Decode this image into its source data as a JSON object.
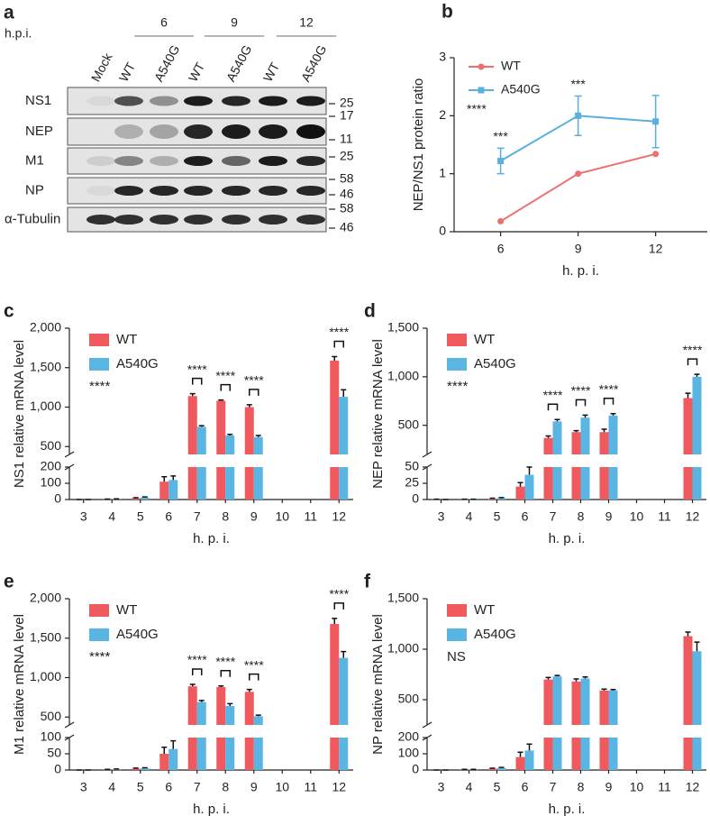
{
  "blot": {
    "panel_label": "a",
    "hpi_label": "h.p.i.",
    "timepoints": [
      "6",
      "9",
      "12"
    ],
    "lanes": [
      "Mock",
      "WT",
      "A540G",
      "WT",
      "A540G",
      "WT",
      "A540G"
    ],
    "rows": [
      {
        "name": "NS1",
        "markers": [
          25
        ]
      },
      {
        "name": "NEP",
        "markers": [
          17,
          11
        ]
      },
      {
        "name": "M1",
        "markers": [
          25
        ]
      },
      {
        "name": "NP",
        "markers": [
          58,
          46
        ]
      },
      {
        "name": "α-Tubulin",
        "markers": [
          58,
          46
        ]
      }
    ]
  },
  "chart_data": [
    {
      "type": "line",
      "panel_label": "b",
      "x_label": "h. p. i.",
      "y_label": "NEP/NS1 protein ratio",
      "x": [
        6,
        9,
        12
      ],
      "xlim": [
        4.2,
        14
      ],
      "xticks": [
        6,
        9,
        12
      ],
      "ylim": [
        0,
        3
      ],
      "yticks": [
        0,
        1,
        2,
        3
      ],
      "series": [
        {
          "name": "WT",
          "color": "#ee6e6e",
          "marker": "circle",
          "values": [
            0.18,
            1.0,
            1.34
          ]
        },
        {
          "name": "A540G",
          "color": "#5aafdf",
          "marker": "square",
          "values": [
            1.22,
            2.0,
            1.9
          ],
          "errors": [
            0.22,
            0.34,
            0.45
          ]
        }
      ],
      "annotations": [
        {
          "text": "***",
          "x": 6
        },
        {
          "text": "***",
          "x": 9
        }
      ],
      "note": "****",
      "legend": "upper left"
    },
    {
      "type": "bar",
      "panel_label": "c",
      "x_label": "h. p. i.",
      "y_label": "NS1 relative mRNA level",
      "categories": [
        "3",
        "4",
        "5",
        "6",
        "7",
        "8",
        "9",
        "10",
        "11",
        "12"
      ],
      "ylim": [
        0,
        2000
      ],
      "ybreak": [
        200,
        400
      ],
      "yticks": [
        0,
        100,
        200,
        500,
        {
          "value": 1000,
          "label": "1,000"
        },
        {
          "value": 1500,
          "label": "1,500"
        },
        {
          "value": 2000,
          "label": "2,000"
        }
      ],
      "series": [
        {
          "name": "WT",
          "color": "#f0595e",
          "values": [
            0,
            2,
            8,
            110,
            1140,
            1080,
            1000,
            null,
            null,
            1590
          ],
          "errors": [
            0,
            1,
            3,
            30,
            30,
            10,
            30,
            null,
            null,
            50
          ]
        },
        {
          "name": "A540G",
          "color": "#5bb5e2",
          "values": [
            0,
            3,
            12,
            120,
            750,
            640,
            620,
            null,
            null,
            1130
          ],
          "errors": [
            0,
            1,
            4,
            25,
            15,
            15,
            20,
            null,
            null,
            90
          ]
        }
      ],
      "brackets": [
        {
          "category": "7",
          "text": "****"
        },
        {
          "category": "8",
          "text": "****"
        },
        {
          "category": "9",
          "text": "****"
        },
        {
          "category": "12",
          "text": "****"
        }
      ],
      "note": "****",
      "legend": "upper left"
    },
    {
      "type": "bar",
      "panel_label": "d",
      "x_label": "h. p. i.",
      "y_label": "NEP relative mRNA level",
      "categories": [
        "3",
        "4",
        "5",
        "6",
        "7",
        "8",
        "9",
        "10",
        "11",
        "12"
      ],
      "ylim": [
        0,
        1500
      ],
      "ybreak": [
        50,
        200
      ],
      "yticks": [
        0,
        25,
        50,
        500,
        {
          "value": 1000,
          "label": "1,000"
        },
        {
          "value": 1500,
          "label": "1,500"
        }
      ],
      "series": [
        {
          "name": "WT",
          "color": "#f0595e",
          "values": [
            0.5,
            0.5,
            1,
            20,
            370,
            430,
            430,
            null,
            null,
            780
          ],
          "errors": [
            0,
            0,
            1,
            6,
            20,
            15,
            30,
            null,
            null,
            50
          ]
        },
        {
          "name": "A540G",
          "color": "#5bb5e2",
          "values": [
            0,
            0.5,
            2,
            38,
            540,
            580,
            600,
            null,
            null,
            1000
          ],
          "errors": [
            0,
            0,
            1,
            12,
            20,
            25,
            20,
            null,
            null,
            25
          ]
        }
      ],
      "brackets": [
        {
          "category": "7",
          "text": "****"
        },
        {
          "category": "8",
          "text": "****"
        },
        {
          "category": "9",
          "text": "****"
        },
        {
          "category": "12",
          "text": "****"
        }
      ],
      "note": "****",
      "legend": "upper left"
    },
    {
      "type": "bar",
      "panel_label": "e",
      "x_label": "h. p. i.",
      "y_label": "M1 relative mRNA level",
      "categories": [
        "3",
        "4",
        "5",
        "6",
        "7",
        "8",
        "9",
        "10",
        "11",
        "12"
      ],
      "ylim": [
        0,
        2000
      ],
      "ybreak": [
        100,
        400
      ],
      "yticks": [
        0,
        50,
        100,
        500,
        {
          "value": 1000,
          "label": "1,000"
        },
        {
          "value": 1500,
          "label": "1,500"
        },
        {
          "value": 2000,
          "label": "2,000"
        }
      ],
      "series": [
        {
          "name": "WT",
          "color": "#f0595e",
          "values": [
            0,
            1,
            4,
            50,
            890,
            880,
            820,
            null,
            null,
            1680
          ],
          "errors": [
            0,
            1,
            2,
            20,
            25,
            15,
            30,
            null,
            null,
            70
          ]
        },
        {
          "name": "A540G",
          "color": "#5bb5e2",
          "values": [
            0,
            2,
            5,
            65,
            690,
            640,
            510,
            null,
            null,
            1250
          ],
          "errors": [
            0,
            1,
            2,
            25,
            20,
            30,
            15,
            null,
            null,
            80
          ]
        }
      ],
      "brackets": [
        {
          "category": "7",
          "text": "****"
        },
        {
          "category": "8",
          "text": "****"
        },
        {
          "category": "9",
          "text": "****"
        },
        {
          "category": "12",
          "text": "****"
        }
      ],
      "note": "****",
      "legend": "upper left"
    },
    {
      "type": "bar",
      "panel_label": "f",
      "x_label": "h. p. i.",
      "y_label": "NP relative mRNA level",
      "categories": [
        "3",
        "4",
        "5",
        "6",
        "7",
        "8",
        "9",
        "10",
        "11",
        "12"
      ],
      "ylim": [
        0,
        1500
      ],
      "ybreak": [
        200,
        250
      ],
      "yticks": [
        0,
        100,
        200,
        500,
        {
          "value": 1000,
          "label": "1,000"
        },
        {
          "value": 1500,
          "label": "1,500"
        }
      ],
      "series": [
        {
          "name": "WT",
          "color": "#f0595e",
          "values": [
            0,
            3,
            8,
            80,
            700,
            680,
            590,
            null,
            null,
            1130
          ],
          "errors": [
            0,
            1,
            3,
            30,
            20,
            25,
            15,
            null,
            null,
            40
          ]
        },
        {
          "name": "A540G",
          "color": "#5bb5e2",
          "values": [
            0,
            3,
            12,
            120,
            730,
            710,
            590,
            null,
            null,
            980
          ],
          "errors": [
            0,
            1,
            4,
            40,
            10,
            15,
            10,
            null,
            null,
            90
          ]
        }
      ],
      "brackets": [],
      "note": "NS",
      "legend": "upper left"
    }
  ]
}
